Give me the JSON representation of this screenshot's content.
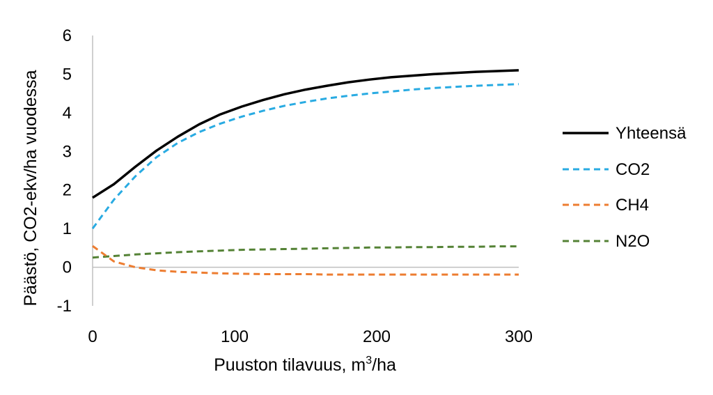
{
  "chart_data": {
    "type": "line",
    "title": "",
    "ylabel": "Päästö, CO2-ekv/ha vuodessa",
    "xlabel_parts": [
      "Puuston tilavuus, m",
      "3",
      "/ha"
    ],
    "xlim": [
      0,
      300
    ],
    "ylim": [
      -1,
      6
    ],
    "x_ticks": [
      0,
      100,
      200,
      300
    ],
    "y_ticks": [
      -1,
      0,
      1,
      2,
      3,
      4,
      5,
      6
    ],
    "grid": false,
    "legend_position": "right",
    "x": [
      0,
      15,
      30,
      45,
      60,
      75,
      90,
      105,
      120,
      135,
      150,
      165,
      180,
      195,
      210,
      225,
      240,
      255,
      270,
      285,
      300
    ],
    "series": [
      {
        "name": "Yhteensä",
        "color": "#000000",
        "dash": "solid",
        "values": [
          1.8,
          2.15,
          2.6,
          3.02,
          3.38,
          3.7,
          3.96,
          4.16,
          4.33,
          4.48,
          4.6,
          4.7,
          4.79,
          4.86,
          4.92,
          4.96,
          5.0,
          5.03,
          5.06,
          5.08,
          5.1
        ]
      },
      {
        "name": "CO2",
        "color": "#29ABE2",
        "dash": "dashed",
        "values": [
          1.0,
          1.75,
          2.35,
          2.85,
          3.22,
          3.5,
          3.72,
          3.9,
          4.05,
          4.18,
          4.28,
          4.37,
          4.44,
          4.5,
          4.55,
          4.6,
          4.64,
          4.67,
          4.7,
          4.72,
          4.74
        ]
      },
      {
        "name": "CH4",
        "color": "#ED7D31",
        "dash": "dashed",
        "values": [
          0.55,
          0.15,
          0.0,
          -0.08,
          -0.12,
          -0.14,
          -0.16,
          -0.17,
          -0.18,
          -0.18,
          -0.18,
          -0.19,
          -0.19,
          -0.19,
          -0.19,
          -0.19,
          -0.19,
          -0.19,
          -0.19,
          -0.19,
          -0.19
        ]
      },
      {
        "name": "N2O",
        "color": "#548235",
        "dash": "dashed",
        "values": [
          0.25,
          0.29,
          0.33,
          0.36,
          0.39,
          0.41,
          0.43,
          0.45,
          0.46,
          0.47,
          0.48,
          0.49,
          0.5,
          0.51,
          0.51,
          0.52,
          0.52,
          0.53,
          0.53,
          0.54,
          0.54
        ]
      }
    ]
  }
}
